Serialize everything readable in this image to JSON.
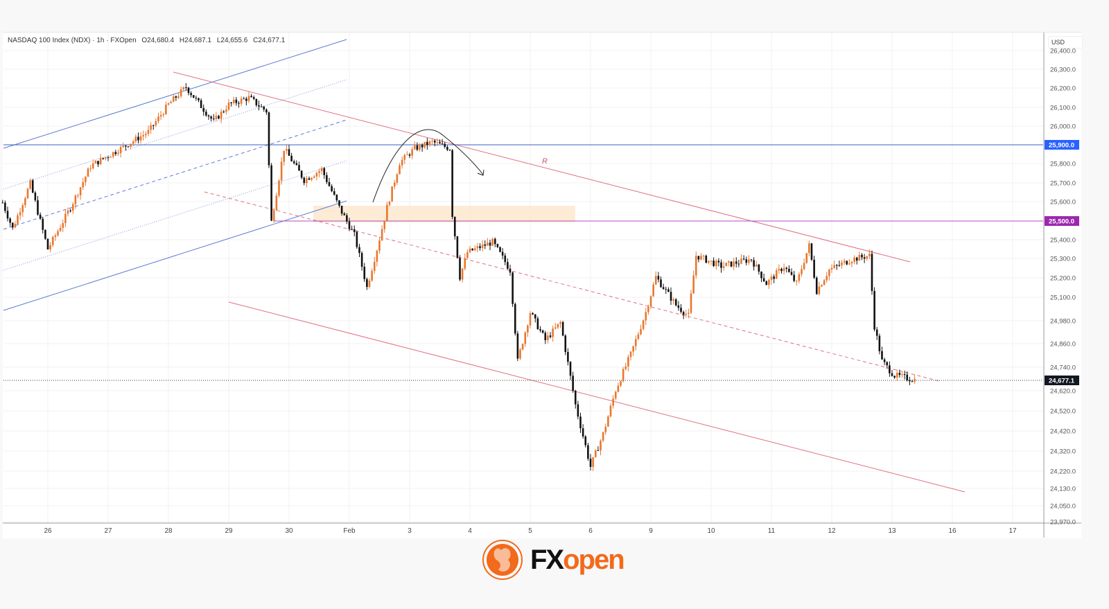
{
  "legend": {
    "symbol": "NASDAQ 100 Index (NDX) · 1h · FXOpen",
    "open": "O24,680.4",
    "high": "H24,687.1",
    "low": "L24,655.6",
    "close": "C24,677.1"
  },
  "axis": {
    "currency": "USD"
  },
  "logo": {
    "fx": "FX",
    "open": "open"
  },
  "colors": {
    "bull": "#e8772e",
    "bear": "#111111",
    "support_line": "#3b5fc4",
    "resistance_channel": "#e07080",
    "level_blue": "#2962ff",
    "level_purple": "#9c27b0",
    "zone": "#fde7cf"
  },
  "chart_data": {
    "type": "candlestick",
    "title": "NASDAQ 100 Index (NDX) · 1h · FXOpen",
    "y_ticks": [
      "26,400.0",
      "26,300.0",
      "26,200.0",
      "26,100.0",
      "26,000.0",
      "25,800.0",
      "25,700.0",
      "25,600.0",
      "25,400.0",
      "25,300.0",
      "25,200.0",
      "25,100.0",
      "24,980.0",
      "24,860.0",
      "24,740.0",
      "24,620.0",
      "24,520.0",
      "24,420.0",
      "24,320.0",
      "24,220.0",
      "24,130.0",
      "24,050.0",
      "23,970.0"
    ],
    "x_ticks": [
      "26",
      "27",
      "28",
      "29",
      "30",
      "Feb",
      "3",
      "4",
      "5",
      "6",
      "9",
      "10",
      "11",
      "12",
      "13",
      "16",
      "17"
    ],
    "ylim": [
      23970,
      26400
    ],
    "grid": true,
    "levels": [
      {
        "price": 25900,
        "label": "25,900.0",
        "color": "#2962ff"
      },
      {
        "price": 25500,
        "label": "25,500.0",
        "color": "#9c27b0"
      }
    ],
    "last_price": {
      "price": 24677.1,
      "label": "24,677.1"
    },
    "annotation": "R",
    "approx_close_path": [
      [
        "Jan 23 06",
        25595
      ],
      [
        "Jan 23 10",
        25460
      ],
      [
        "Jan 23 17",
        25696
      ],
      [
        "Jan 26 00",
        25350
      ],
      [
        "Jan 26 09",
        25570
      ],
      [
        "Jan 26 17",
        25787
      ],
      [
        "Jan 27 07",
        25896
      ],
      [
        "Jan 27 16",
        25970
      ],
      [
        "Jan 28 00",
        26115
      ],
      [
        "Jan 28 07",
        26205
      ],
      [
        "Jan 28 18",
        26024
      ],
      [
        "Jan 29 00",
        26115
      ],
      [
        "Jan 29 08",
        26150
      ],
      [
        "Jan 29 15",
        26080
      ],
      [
        "Jan 29 17",
        25496
      ],
      [
        "Jan 29 22",
        25880
      ],
      [
        "Jan 30 06",
        25715
      ],
      [
        "Jan 30 13",
        25770
      ],
      [
        "Jan 30 20",
        25570
      ],
      [
        "Feb 2 02",
        25425
      ],
      [
        "Feb 2 07",
        25150
      ],
      [
        "Feb 2 11",
        25350
      ],
      [
        "Feb 2 15",
        25570
      ],
      [
        "Feb 2 20",
        25805
      ],
      [
        "Feb 3 02",
        25880
      ],
      [
        "Feb 3 09",
        25915
      ],
      [
        "Feb 3 16",
        25880
      ],
      [
        "Feb 3 17",
        25533
      ],
      [
        "Feb 3 20",
        25205
      ],
      [
        "Feb 3 23",
        25333
      ],
      [
        "Feb 4 09",
        25388
      ],
      [
        "Feb 4 16",
        25240
      ],
      [
        "Feb 4 19",
        24770
      ],
      [
        "Feb 5 00",
        25024
      ],
      [
        "Feb 5 06",
        24878
      ],
      [
        "Feb 5 12",
        24970
      ],
      [
        "Feb 5 18",
        24550
      ],
      [
        "Feb 6 00",
        24242
      ],
      [
        "Feb 6 05",
        24405
      ],
      [
        "Feb 6 10",
        24624
      ],
      [
        "Feb 6 16",
        24805
      ],
      [
        "Feb 6 22",
        25024
      ],
      [
        "Feb 9 02",
        25205
      ],
      [
        "Feb 9 10",
        25060
      ],
      [
        "Feb 9 15",
        25005
      ],
      [
        "Feb 9 18",
        25315
      ],
      [
        "Feb 10 04",
        25260
      ],
      [
        "Feb 10 16",
        25296
      ],
      [
        "Feb 10 22",
        25170
      ],
      [
        "Feb 11 05",
        25260
      ],
      [
        "Feb 11 10",
        25170
      ],
      [
        "Feb 11 15",
        25369
      ],
      [
        "Feb 11 18",
        25133
      ],
      [
        "Feb 11 23",
        25242
      ],
      [
        "Feb 12 08",
        25296
      ],
      [
        "Feb 12 15",
        25315
      ],
      [
        "Feb 12 17",
        24951
      ],
      [
        "Feb 12 20",
        24770
      ],
      [
        "Feb 13 01",
        24697
      ],
      [
        "Feb 13 09",
        24677
      ]
    ]
  }
}
